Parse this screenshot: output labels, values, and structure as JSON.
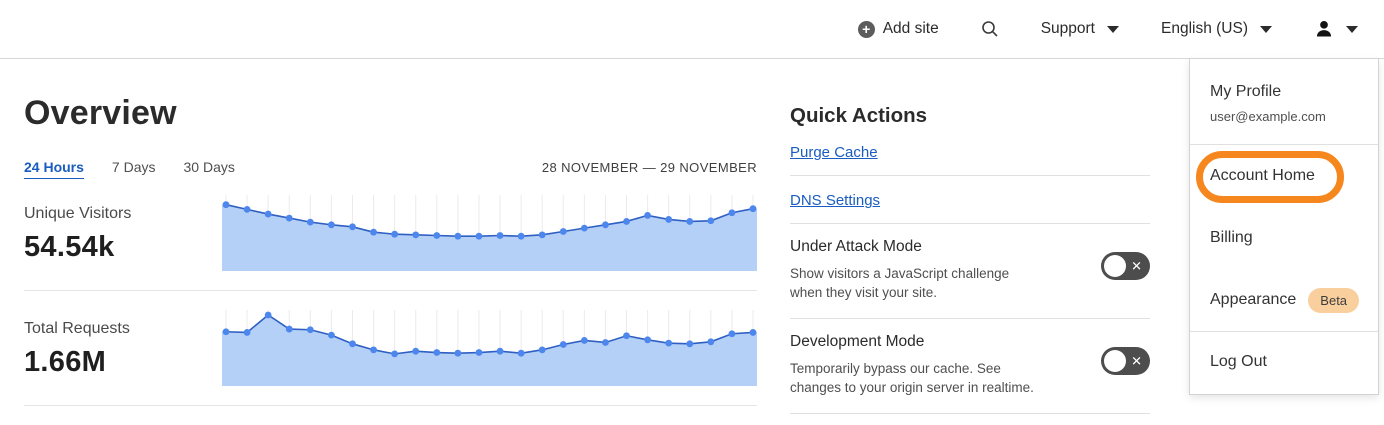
{
  "header": {
    "add_site_label": "Add site",
    "support_label": "Support",
    "language_label": "English (US)"
  },
  "overview": {
    "title": "Overview",
    "tabs": [
      {
        "label": "24 Hours",
        "active": true
      },
      {
        "label": "7 Days",
        "active": false
      },
      {
        "label": "30 Days",
        "active": false
      }
    ],
    "date_range": "28 NOVEMBER — 29 NOVEMBER",
    "metrics": [
      {
        "label": "Unique Visitors",
        "value": "54.54k"
      },
      {
        "label": "Total Requests",
        "value": "1.66M"
      }
    ]
  },
  "chart_data": [
    {
      "type": "area",
      "title": "Unique Visitors",
      "total_label": "54.54k",
      "x_range": [
        "28 November",
        "29 November"
      ],
      "ylim": [
        0,
        100
      ],
      "grid": true,
      "legend_position": "none",
      "values_relative": [
        93,
        86,
        79,
        73,
        67,
        63,
        60,
        52,
        49,
        48,
        47,
        46,
        46,
        47,
        46,
        48,
        53,
        58,
        63,
        68,
        77,
        71,
        68,
        69,
        81,
        87
      ],
      "line_color": "#2e5fc2",
      "fill_color": "#b4d0f7",
      "point_color": "#4d86ec",
      "grid_color": "#ebebeb"
    },
    {
      "type": "area",
      "title": "Total Requests",
      "total_label": "1.66M",
      "x_range": [
        "28 November",
        "29 November"
      ],
      "ylim": [
        0,
        100
      ],
      "grid": true,
      "legend_position": "none",
      "values_relative": [
        75,
        74,
        100,
        79,
        78,
        70,
        57,
        48,
        42,
        46,
        44,
        43,
        44,
        46,
        43,
        48,
        56,
        62,
        59,
        69,
        63,
        58,
        57,
        60,
        72,
        74
      ],
      "line_color": "#2e5fc2",
      "fill_color": "#b4d0f7",
      "point_color": "#4d86ec",
      "grid_color": "#ebebeb"
    }
  ],
  "quick_actions": {
    "title": "Quick Actions",
    "links": [
      {
        "label": "Purge Cache"
      },
      {
        "label": "DNS Settings"
      }
    ],
    "toggles": [
      {
        "label": "Under Attack Mode",
        "description": "Show visitors a JavaScript challenge when they visit your site.",
        "state": "off"
      },
      {
        "label": "Development Mode",
        "description": "Temporarily bypass our cache. See changes to your origin server in realtime.",
        "state": "off"
      }
    ]
  },
  "account_menu": {
    "profile_label": "My Profile",
    "email": "user@example.com",
    "items": [
      {
        "label": "Account Home",
        "highlighted": true
      },
      {
        "label": "Billing"
      },
      {
        "label": "Appearance",
        "badge": "Beta"
      },
      {
        "label": "Log Out"
      }
    ],
    "badge_label": "Beta",
    "highlight_color": "#f6871f",
    "badge_bg_color": "#f9cf9e"
  },
  "colors": {
    "link_blue": "#1a5cc0",
    "toggle_off_bg": "#4d4d4d",
    "header_border": "#d8d8d8"
  }
}
